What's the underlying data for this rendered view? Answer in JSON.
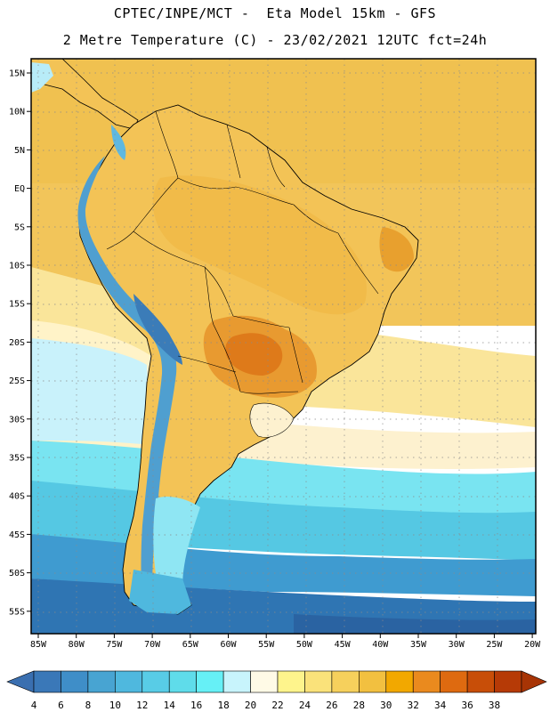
{
  "header": {
    "line1": "CPTEC/INPE/MCT -  Eta Model 15km - GFS",
    "line2": "2 Metre Temperature (C) - 23/02/2021 12UTC fct=24h"
  },
  "axes": {
    "lat_labels": [
      "15N",
      "10N",
      "5N",
      "EQ",
      "5S",
      "10S",
      "15S",
      "20S",
      "25S",
      "30S",
      "35S",
      "40S",
      "45S",
      "50S",
      "55S"
    ],
    "lon_labels": [
      "85W",
      "80W",
      "75W",
      "70W",
      "65W",
      "60W",
      "55W",
      "50W",
      "45W",
      "40W",
      "35W",
      "30W",
      "25W",
      "20W"
    ]
  },
  "legend": {
    "unit": "C",
    "values": [
      "4",
      "6",
      "8",
      "10",
      "12",
      "14",
      "16",
      "18",
      "20",
      "22",
      "24",
      "26",
      "28",
      "30",
      "32",
      "34",
      "36",
      "38"
    ],
    "colors": [
      "#3a78b8",
      "#3f8ec8",
      "#48a4d2",
      "#4fb8de",
      "#58cce6",
      "#5fdcea",
      "#66f0f6",
      "#c8f4fc",
      "#fffae6",
      "#fef48c",
      "#fae27a",
      "#f6d05c",
      "#f2c040",
      "#f2a800",
      "#ea8a1e",
      "#de6a10",
      "#c84e08",
      "#b63a06"
    ],
    "low_arrow_color": "#3a6fb0",
    "high_arrow_color": "#a73405"
  },
  "palette": {
    "ocean_warm": "#f2c55a",
    "ocean_mid": "#fae59a",
    "ocean_cool": "#c9f2fb",
    "ocean_cold": "#55c8e3",
    "ocean_colder": "#3f9bd0",
    "ocean_coldest": "#2c6aab",
    "land_hot": "#e8942b",
    "land_warm": "#f3c356",
    "andes": "#4f9fd0",
    "andes_high": "#3b7cb8",
    "patagonia": "#8fe6f3",
    "grid": "#8a8a8a",
    "coast": "#000000"
  }
}
